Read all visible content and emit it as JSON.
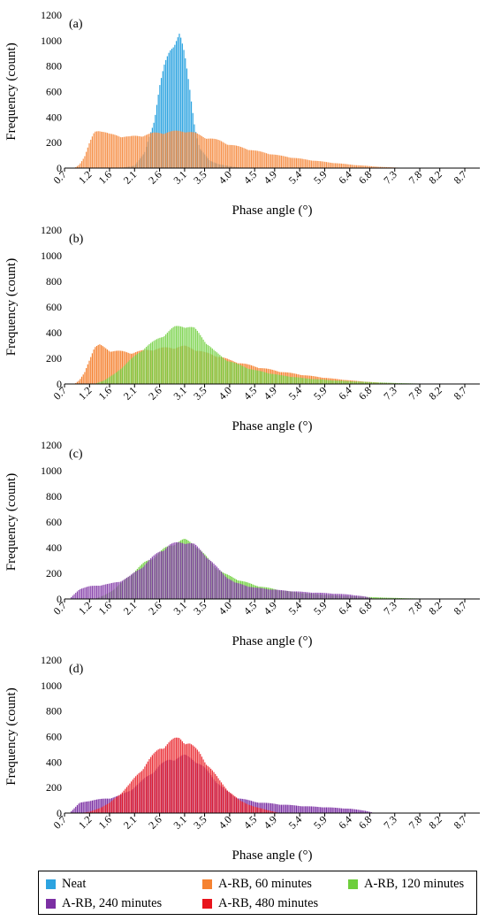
{
  "colors": {
    "Neat": "#2ca3e0",
    "A-RB, 60 minutes": "#f58231",
    "A-RB, 120 minutes": "#6ecf3c",
    "A-RB, 240 minutes": "#7b2fa3",
    "A-RB, 480 minutes": "#e8141c"
  },
  "legend": {
    "items": [
      "Neat",
      "A-RB, 60 minutes",
      "A-RB, 120 minutes",
      "A-RB, 240 minutes",
      "A-RB, 480 minutes"
    ]
  },
  "chart_data": [
    {
      "type": "bar",
      "panel_label": "(a)",
      "xlabel": "Phase angle (°)",
      "ylabel": "Frequency (count)",
      "xlim": [
        0.7,
        9.0
      ],
      "ylim": [
        0,
        1200
      ],
      "yticks": [
        0,
        200,
        400,
        600,
        800,
        1000,
        1200
      ],
      "xticks": [
        "0.7",
        "1.2",
        "1.6",
        "2.1",
        "2.6",
        "3.1",
        "3.5",
        "4.0",
        "4.5",
        "4.9",
        "5.4",
        "5.9",
        "6.4",
        "6.8",
        "7.3",
        "7.8",
        "8.2",
        "8.7"
      ],
      "grid": false,
      "series": [
        {
          "name": "Neat",
          "x": [
            1.8,
            2.1,
            2.3,
            2.5,
            2.6,
            2.7,
            2.8,
            2.9,
            3.0,
            3.1,
            3.2,
            3.3,
            3.4,
            3.6,
            3.8,
            4.0,
            4.3
          ],
          "y": [
            0,
            20,
            120,
            400,
            650,
            820,
            940,
            1030,
            1080,
            900,
            640,
            350,
            160,
            60,
            30,
            15,
            0
          ]
        },
        {
          "name": "A-RB, 60 minutes",
          "x": [
            0.9,
            1.0,
            1.1,
            1.2,
            1.3,
            1.4,
            1.6,
            1.8,
            2.0,
            2.2,
            2.5,
            2.8,
            3.1,
            3.3,
            3.5,
            3.8,
            4.0,
            4.5,
            5.0,
            5.5,
            6.0,
            6.5,
            7.0,
            7.3,
            7.6
          ],
          "y": [
            0,
            30,
            90,
            200,
            290,
            310,
            270,
            260,
            250,
            260,
            280,
            290,
            300,
            280,
            250,
            220,
            190,
            140,
            100,
            70,
            45,
            25,
            10,
            5,
            0
          ]
        }
      ]
    },
    {
      "type": "bar",
      "panel_label": "(b)",
      "xlabel": "Phase angle (°)",
      "ylabel": "Frequency (count)",
      "xlim": [
        0.7,
        9.0
      ],
      "ylim": [
        0,
        1200
      ],
      "yticks": [
        0,
        200,
        400,
        600,
        800,
        1000,
        1200
      ],
      "xticks": [
        "0.7",
        "1.2",
        "1.6",
        "2.1",
        "2.6",
        "3.1",
        "3.5",
        "4.0",
        "4.5",
        "4.9",
        "5.4",
        "5.9",
        "6.4",
        "6.8",
        "7.3",
        "7.8",
        "8.2",
        "8.7"
      ],
      "grid": false,
      "series": [
        {
          "name": "A-RB, 60 minutes",
          "x": [
            0.9,
            1.0,
            1.1,
            1.2,
            1.3,
            1.4,
            1.6,
            1.8,
            2.0,
            2.2,
            2.5,
            2.8,
            3.1,
            3.3,
            3.5,
            3.8,
            4.0,
            4.5,
            5.0,
            5.5,
            6.0,
            6.5,
            7.0,
            7.3,
            7.6
          ],
          "y": [
            0,
            30,
            90,
            200,
            290,
            310,
            270,
            260,
            250,
            260,
            280,
            290,
            300,
            280,
            250,
            220,
            190,
            140,
            100,
            70,
            45,
            25,
            10,
            5,
            0
          ]
        },
        {
          "name": "A-RB, 120 minutes",
          "x": [
            1.3,
            1.5,
            1.7,
            1.9,
            2.1,
            2.3,
            2.5,
            2.7,
            2.9,
            3.1,
            3.3,
            3.5,
            3.7,
            3.9,
            4.2,
            4.5,
            5.0,
            5.5,
            6.0,
            6.5,
            7.0,
            7.5,
            8.0,
            8.2
          ],
          "y": [
            0,
            30,
            80,
            150,
            220,
            290,
            340,
            400,
            450,
            470,
            440,
            350,
            260,
            200,
            150,
            110,
            70,
            45,
            30,
            20,
            12,
            6,
            2,
            0
          ]
        }
      ]
    },
    {
      "type": "bar",
      "panel_label": "(c)",
      "xlabel": "Phase angle (°)",
      "ylabel": "Frequency (count)",
      "xlim": [
        0.7,
        9.0
      ],
      "ylim": [
        0,
        1200
      ],
      "yticks": [
        0,
        200,
        400,
        600,
        800,
        1000,
        1200
      ],
      "xticks": [
        "0.7",
        "1.2",
        "1.6",
        "2.1",
        "2.6",
        "3.1",
        "3.5",
        "4.0",
        "4.5",
        "4.9",
        "5.4",
        "5.9",
        "6.4",
        "6.8",
        "7.3",
        "7.8",
        "8.2",
        "8.7"
      ],
      "grid": false,
      "series": [
        {
          "name": "A-RB, 120 minutes",
          "x": [
            1.3,
            1.5,
            1.7,
            1.9,
            2.1,
            2.3,
            2.5,
            2.7,
            2.9,
            3.1,
            3.3,
            3.5,
            3.7,
            3.9,
            4.2,
            4.5,
            5.0,
            5.5,
            6.0,
            6.5,
            7.0,
            7.5,
            8.0,
            8.2
          ],
          "y": [
            0,
            30,
            80,
            150,
            220,
            290,
            340,
            400,
            450,
            470,
            440,
            350,
            260,
            200,
            150,
            110,
            70,
            45,
            30,
            20,
            12,
            6,
            2,
            0
          ]
        },
        {
          "name": "A-RB, 240 minutes",
          "x": [
            0.8,
            0.9,
            1.0,
            1.2,
            1.4,
            1.6,
            1.8,
            2.0,
            2.2,
            2.4,
            2.6,
            2.8,
            3.0,
            3.1,
            3.3,
            3.5,
            3.7,
            3.9,
            4.1,
            4.5,
            5.0,
            5.5,
            6.0,
            6.4,
            6.7,
            6.9
          ],
          "y": [
            0,
            40,
            80,
            100,
            110,
            120,
            140,
            180,
            240,
            310,
            380,
            430,
            450,
            460,
            430,
            360,
            270,
            190,
            130,
            90,
            70,
            55,
            45,
            35,
            20,
            0
          ]
        }
      ]
    },
    {
      "type": "bar",
      "panel_label": "(d)",
      "xlabel": "Phase angle (°)",
      "ylabel": "Frequency (count)",
      "xlim": [
        0.7,
        9.0
      ],
      "ylim": [
        0,
        1200
      ],
      "yticks": [
        0,
        200,
        400,
        600,
        800,
        1000,
        1200
      ],
      "xticks": [
        "0.7",
        "1.2",
        "1.6",
        "2.1",
        "2.6",
        "3.1",
        "3.5",
        "4.0",
        "4.5",
        "4.9",
        "5.4",
        "5.9",
        "6.4",
        "6.8",
        "7.3",
        "7.8",
        "8.2",
        "8.7"
      ],
      "grid": false,
      "series": [
        {
          "name": "A-RB, 240 minutes",
          "x": [
            0.8,
            0.9,
            1.0,
            1.2,
            1.4,
            1.6,
            1.8,
            2.0,
            2.2,
            2.4,
            2.6,
            2.8,
            3.0,
            3.1,
            3.3,
            3.5,
            3.7,
            3.9,
            4.1,
            4.5,
            5.0,
            5.5,
            6.0,
            6.4,
            6.7,
            6.9
          ],
          "y": [
            0,
            40,
            80,
            100,
            110,
            120,
            140,
            180,
            240,
            310,
            380,
            430,
            450,
            460,
            430,
            360,
            270,
            190,
            130,
            90,
            70,
            55,
            45,
            35,
            20,
            0
          ]
        },
        {
          "name": "A-RB, 480 minutes",
          "x": [
            1.0,
            1.2,
            1.4,
            1.6,
            1.8,
            2.0,
            2.2,
            2.4,
            2.6,
            2.8,
            2.9,
            3.0,
            3.1,
            3.2,
            3.4,
            3.6,
            3.8,
            4.0,
            4.2,
            4.5,
            4.8,
            5.0
          ],
          "y": [
            0,
            10,
            40,
            80,
            150,
            230,
            330,
            430,
            520,
            570,
            590,
            600,
            580,
            560,
            480,
            370,
            260,
            170,
            100,
            50,
            20,
            0
          ]
        }
      ]
    }
  ]
}
